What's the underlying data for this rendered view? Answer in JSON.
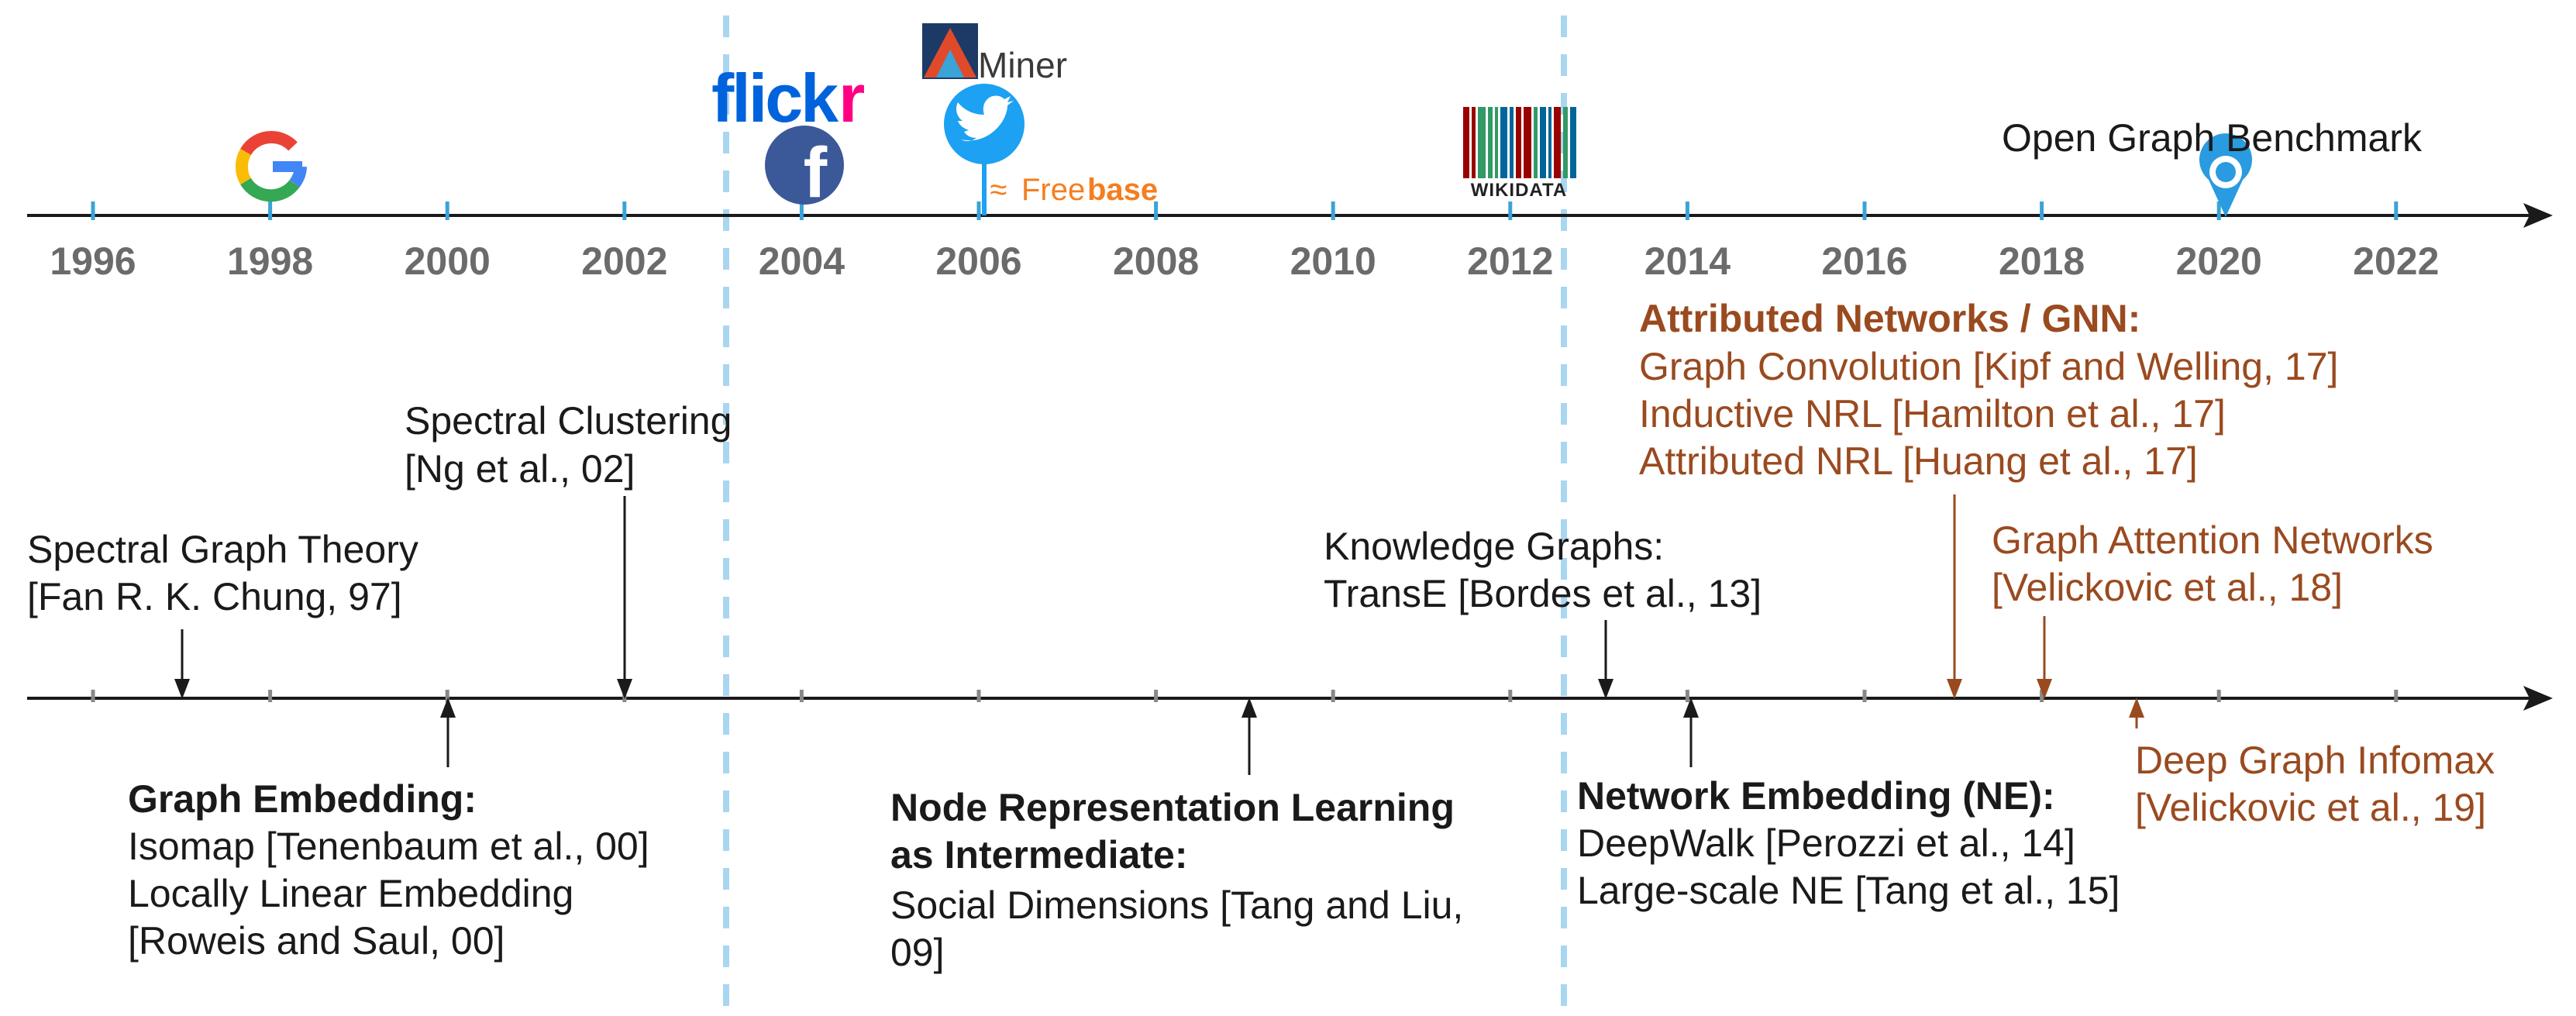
{
  "colors": {
    "axis": "#1a1a1a",
    "top_ticks": "#3aa3d8",
    "bottom_ticks": "#888888",
    "era_dashes": "#a9d6f0",
    "year_text": "#6b6b6b",
    "gnn_text": "#9a4a1f",
    "facebook": "#3b5998",
    "twitter": "#1da1f2",
    "freebase": "#f47e20",
    "ogb_pin": "#2a9be0"
  },
  "timeline": {
    "years": [
      "1996",
      "1998",
      "2000",
      "2002",
      "2004",
      "2006",
      "2008",
      "2010",
      "2012",
      "2014",
      "2016",
      "2018",
      "2020",
      "2022"
    ]
  },
  "logos": {
    "google": {
      "icon": "google-g-logo",
      "text": "G"
    },
    "flickr": {
      "icon": "flickr-logo",
      "text": "flickr"
    },
    "facebook": {
      "icon": "facebook-logo",
      "text": "f"
    },
    "aminer": {
      "icon": "aminer-logo",
      "text": "Miner"
    },
    "twitter": {
      "icon": "twitter-bird-logo"
    },
    "freebase": {
      "icon": "freebase-logo",
      "text": "Freebase"
    },
    "wikidata": {
      "icon": "wikidata-barcode-logo",
      "text": "WIKIDATA"
    },
    "ogb": {
      "icon": "location-pin-icon",
      "text": "Open Graph Benchmark"
    }
  },
  "events_above": {
    "spectral_graph_theory": {
      "line1": "Spectral Graph Theory",
      "line2": "[Fan R. K. Chung, 97]"
    },
    "spectral_clustering": {
      "line1": "Spectral Clustering",
      "line2": "[Ng et al., 02]"
    },
    "knowledge_graphs": {
      "line1": "Knowledge Graphs:",
      "line2": "TransE [Bordes et al., 13]"
    },
    "attributed_networks": {
      "title": "Attributed Networks / GNN:",
      "items": [
        "Graph Convolution [Kipf and Welling, 17]",
        "Inductive NRL [Hamilton et al., 17]",
        "Attributed NRL [Huang et al., 17]"
      ]
    },
    "graph_attention": {
      "line1": "Graph Attention Networks",
      "line2": "[Velickovic et al., 18]"
    }
  },
  "events_below": {
    "graph_embedding": {
      "title": "Graph Embedding:",
      "items": [
        "Isomap [Tenenbaum et al., 00]",
        "Locally Linear Embedding",
        "[Roweis and Saul, 00]"
      ]
    },
    "node_representation": {
      "title_line1": "Node Representation Learning",
      "title_line2": "as Intermediate:",
      "items": [
        "Social Dimensions [Tang and Liu,",
        "09]"
      ]
    },
    "network_embedding": {
      "title": "Network Embedding (NE):",
      "items": [
        "DeepWalk [Perozzi et al., 14]",
        "Large-scale NE [Tang et al., 15]"
      ]
    },
    "deep_graph_infomax": {
      "line1": "Deep Graph Infomax",
      "line2": "[Velickovic et al., 19]"
    }
  }
}
